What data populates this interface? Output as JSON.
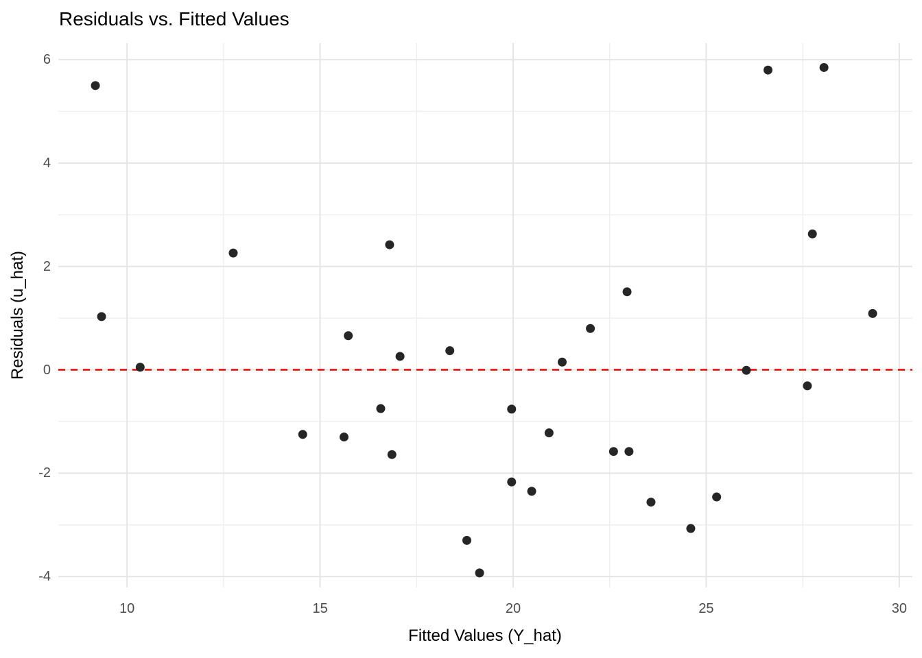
{
  "chart_data": {
    "type": "scatter",
    "title": "Residuals vs. Fitted Values",
    "xlabel": "Fitted Values (Y_hat)",
    "ylabel": "Residuals (u_hat)",
    "xlim": [
      8.22,
      30.34
    ],
    "ylim": [
      -4.21,
      6.32
    ],
    "x_ticks": [
      10,
      15,
      20,
      25,
      30
    ],
    "y_ticks": [
      6,
      4,
      2,
      0,
      -2,
      -4
    ],
    "x_minor_gridlines": [
      12.5,
      17.5,
      22.5,
      27.5
    ],
    "y_minor_gridlines": [
      5,
      3,
      1,
      -1,
      -3
    ],
    "grid": "on",
    "legend": "none",
    "reference_line": {
      "y": 0,
      "color": "#EE0000",
      "style": "dashed"
    },
    "points": [
      [
        9.18,
        5.5
      ],
      [
        9.34,
        1.03
      ],
      [
        10.34,
        0.05
      ],
      [
        12.75,
        2.26
      ],
      [
        14.55,
        -1.25
      ],
      [
        15.62,
        -1.3
      ],
      [
        15.73,
        0.66
      ],
      [
        16.57,
        -0.75
      ],
      [
        16.8,
        2.42
      ],
      [
        16.86,
        -1.64
      ],
      [
        17.07,
        0.26
      ],
      [
        18.36,
        0.37
      ],
      [
        18.8,
        -3.3
      ],
      [
        19.13,
        -3.93
      ],
      [
        19.96,
        -0.76
      ],
      [
        19.96,
        -2.17
      ],
      [
        20.48,
        -2.35
      ],
      [
        20.93,
        -1.22
      ],
      [
        21.27,
        0.15
      ],
      [
        22.0,
        0.8
      ],
      [
        22.6,
        -1.58
      ],
      [
        22.95,
        1.51
      ],
      [
        23.0,
        -1.58
      ],
      [
        23.57,
        -2.56
      ],
      [
        24.6,
        -3.07
      ],
      [
        25.27,
        -2.46
      ],
      [
        26.04,
        -0.01
      ],
      [
        26.6,
        5.8
      ],
      [
        27.62,
        -0.31
      ],
      [
        27.75,
        2.63
      ],
      [
        28.05,
        5.85
      ],
      [
        29.31,
        1.09
      ]
    ],
    "colors": {
      "point": "#262626",
      "grid_major": "#E5E5E5",
      "grid_minor": "#EFEFEF",
      "tick_label": "#4D4D4D",
      "title": "#000000",
      "background": "#FFFFFF"
    }
  }
}
